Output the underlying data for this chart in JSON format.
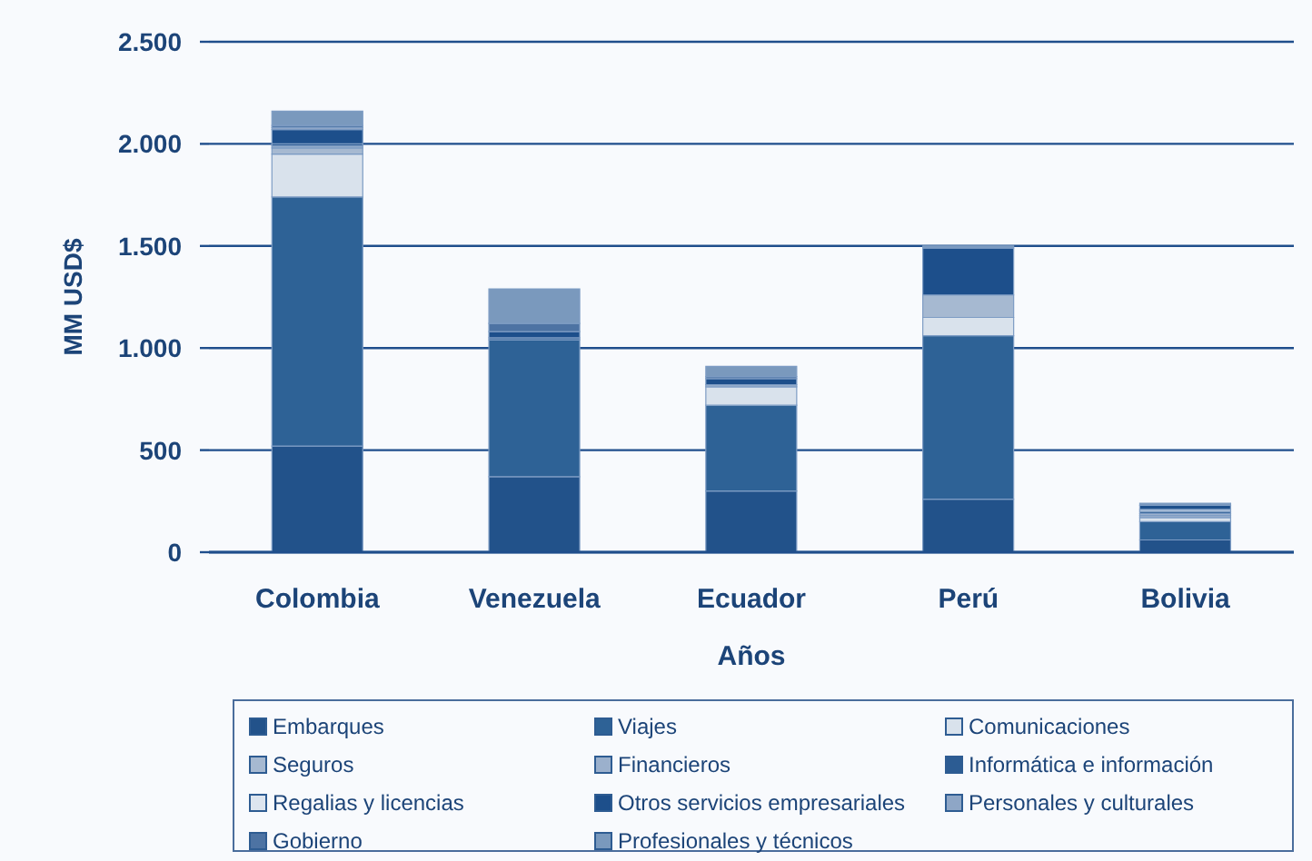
{
  "chart_data": {
    "type": "bar",
    "stacked": true,
    "xlabel": "Años",
    "ylabel": "MM USD$",
    "categories": [
      "Colombia",
      "Venezuela",
      "Ecuador",
      "Perú",
      "Bolivia"
    ],
    "ylim": [
      0,
      2500
    ],
    "yticks": [
      0,
      500,
      {
        "value": 1000,
        "label": "1.000"
      },
      {
        "value": 1500,
        "label": "1.500"
      },
      {
        "value": 2000,
        "label": "2.000"
      },
      {
        "value": 2500,
        "label": "2.500"
      }
    ],
    "grid": "y",
    "legend": "bottom",
    "series": [
      {
        "name": "Embarques",
        "color": "#22528a",
        "values": [
          520,
          370,
          300,
          260,
          60
        ]
      },
      {
        "name": "Viajes",
        "color": "#2e6296",
        "values": [
          1220,
          670,
          420,
          800,
          90
        ]
      },
      {
        "name": "Comunicaciones",
        "color": "#d9e2ec",
        "values": [
          210,
          0,
          90,
          90,
          20
        ]
      },
      {
        "name": "Seguros",
        "color": "#a6b9d1",
        "values": [
          30,
          0,
          10,
          110,
          10
        ]
      },
      {
        "name": "Financieros",
        "color": "#9bb0cc",
        "values": [
          10,
          0,
          0,
          0,
          10
        ]
      },
      {
        "name": "Informática e información",
        "color": "#2c5c93",
        "values": [
          10,
          10,
          0,
          0,
          10
        ]
      },
      {
        "name": "Regalias y licencias",
        "color": "#dde5ef",
        "values": [
          0,
          0,
          0,
          0,
          10
        ]
      },
      {
        "name": "Otros servicios empresariales",
        "color": "#1d4f8b",
        "values": [
          70,
          30,
          30,
          230,
          20
        ]
      },
      {
        "name": "Personales y culturales",
        "color": "#8ea6c6",
        "values": [
          10,
          0,
          0,
          0,
          0
        ]
      },
      {
        "name": "Gobierno",
        "color": "#4d73a3",
        "values": [
          10,
          40,
          10,
          0,
          0
        ]
      },
      {
        "name": "Profesionales y técnicos",
        "color": "#7a99bd",
        "values": [
          70,
          170,
          50,
          10,
          10
        ]
      }
    ]
  }
}
